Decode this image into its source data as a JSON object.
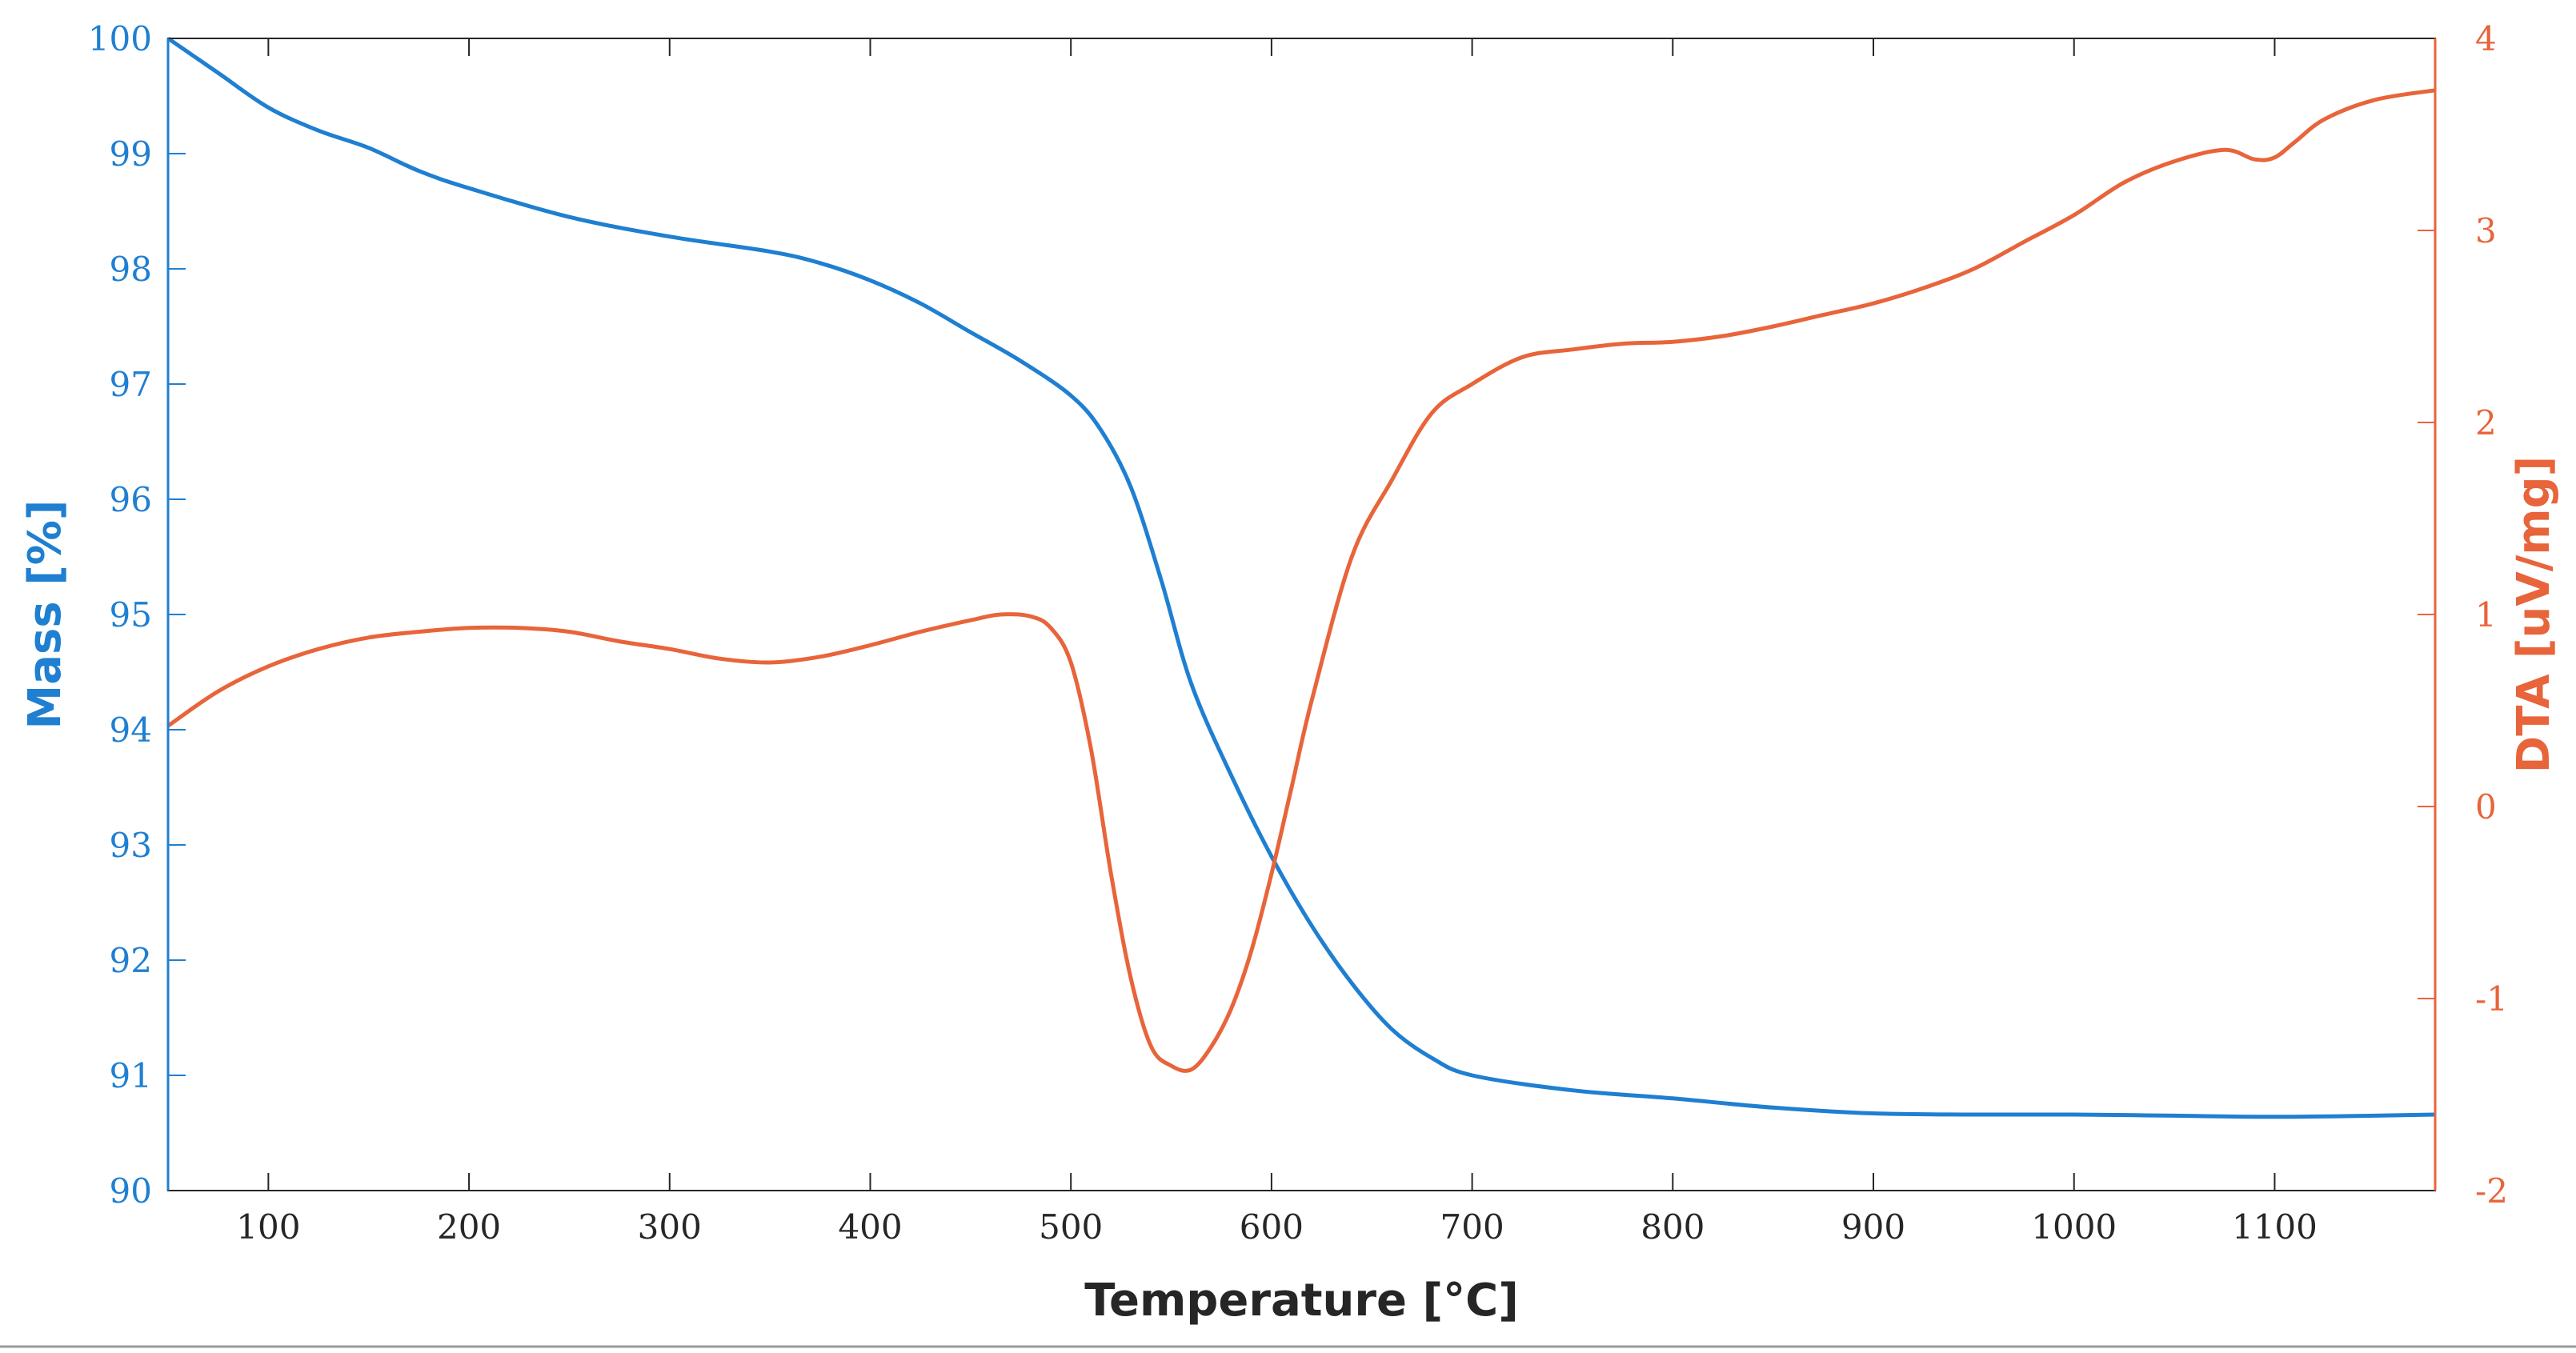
{
  "chart_data": {
    "type": "line",
    "title": "",
    "xlabel": "Temperature [°C]",
    "ylabel_left": "Mass [%]",
    "ylabel_right": "DTA [uV/mg]",
    "xlim": [
      50,
      1180
    ],
    "ylim_left": [
      90,
      100
    ],
    "ylim_right": [
      -2,
      4
    ],
    "x_ticks": [
      100,
      200,
      300,
      400,
      500,
      600,
      700,
      800,
      900,
      1000,
      1100
    ],
    "y_left_ticks": [
      90,
      91,
      92,
      93,
      94,
      95,
      96,
      97,
      98,
      99,
      100
    ],
    "y_right_ticks": [
      -2,
      -1,
      0,
      1,
      2,
      3,
      4
    ],
    "grid": false,
    "colors": {
      "mass": "#1f7fd1",
      "dta": "#e8643a",
      "axis": "#262626"
    },
    "series": [
      {
        "name": "Mass",
        "axis": "left",
        "x": [
          50,
          75,
          100,
          125,
          150,
          175,
          200,
          250,
          300,
          350,
          375,
          400,
          425,
          450,
          475,
          500,
          515,
          530,
          545,
          560,
          580,
          600,
          620,
          640,
          660,
          680,
          700,
          750,
          800,
          850,
          900,
          950,
          1000,
          1050,
          1100,
          1150,
          1180
        ],
        "values": [
          100,
          99.7,
          99.4,
          99.2,
          99.05,
          98.85,
          98.7,
          98.45,
          98.28,
          98.15,
          98.05,
          97.9,
          97.7,
          97.45,
          97.2,
          96.9,
          96.6,
          96.1,
          95.3,
          94.4,
          93.6,
          92.9,
          92.3,
          91.8,
          91.4,
          91.15,
          91.0,
          90.87,
          90.8,
          90.72,
          90.67,
          90.66,
          90.66,
          90.65,
          90.64,
          90.65,
          90.66
        ]
      },
      {
        "name": "DTA",
        "axis": "right",
        "x": [
          50,
          75,
          100,
          125,
          150,
          175,
          200,
          225,
          250,
          275,
          300,
          325,
          350,
          375,
          400,
          425,
          450,
          465,
          480,
          490,
          500,
          510,
          520,
          530,
          540,
          550,
          560,
          570,
          580,
          590,
          600,
          610,
          620,
          640,
          660,
          680,
          700,
          725,
          750,
          775,
          800,
          825,
          850,
          875,
          900,
          925,
          950,
          975,
          1000,
          1025,
          1050,
          1075,
          1090,
          1100,
          1110,
          1125,
          1150,
          1180
        ],
        "values": [
          0.42,
          0.6,
          0.73,
          0.82,
          0.88,
          0.91,
          0.93,
          0.93,
          0.91,
          0.86,
          0.82,
          0.77,
          0.75,
          0.78,
          0.84,
          0.91,
          0.97,
          1.0,
          0.99,
          0.93,
          0.75,
          0.3,
          -0.35,
          -0.9,
          -1.25,
          -1.35,
          -1.37,
          -1.25,
          -1.05,
          -0.75,
          -0.35,
          0.1,
          0.55,
          1.3,
          1.7,
          2.05,
          2.2,
          2.34,
          2.38,
          2.41,
          2.42,
          2.45,
          2.5,
          2.56,
          2.62,
          2.7,
          2.8,
          2.94,
          3.08,
          3.25,
          3.36,
          3.42,
          3.37,
          3.38,
          3.46,
          3.58,
          3.68,
          3.73
        ]
      }
    ]
  }
}
